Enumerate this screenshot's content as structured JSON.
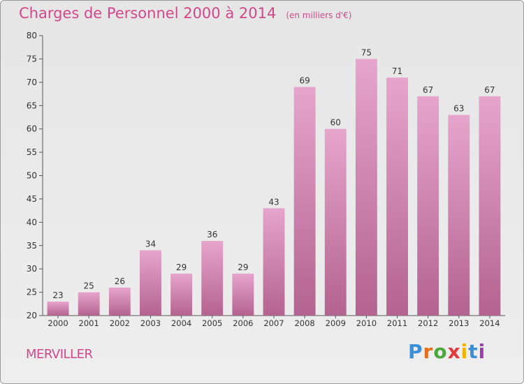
{
  "chart_data": {
    "type": "bar",
    "title": "Charges de Personnel 2000 à 2014",
    "subtitle": "(en milliers d'€)",
    "categories": [
      "2000",
      "2001",
      "2002",
      "2003",
      "2004",
      "2005",
      "2006",
      "2007",
      "2008",
      "2009",
      "2010",
      "2011",
      "2012",
      "2013",
      "2014"
    ],
    "values": [
      23,
      25,
      26,
      34,
      29,
      36,
      29,
      43,
      69,
      60,
      75,
      71,
      67,
      63,
      67
    ],
    "ylim": [
      20,
      80
    ],
    "yticks": [
      20,
      25,
      30,
      35,
      40,
      45,
      50,
      55,
      60,
      65,
      70,
      75,
      80
    ],
    "grid": false,
    "colors": {
      "bar_top": "#e6a5cc",
      "bar_bottom": "#b3638f",
      "accent": "#d0488a"
    }
  },
  "footer": {
    "commune": "MERVILLER",
    "brand_letters": [
      {
        "ch": "P",
        "color": "#3a8fd6"
      },
      {
        "ch": "r",
        "color": "#e0701e"
      },
      {
        "ch": "o",
        "color": "#4aa83c"
      },
      {
        "ch": "x",
        "color": "#e03a3a"
      },
      {
        "ch": "i",
        "color": "#f0b400"
      },
      {
        "ch": "t",
        "color": "#3a8fd6"
      },
      {
        "ch": "i",
        "color": "#9c3db0"
      }
    ]
  }
}
